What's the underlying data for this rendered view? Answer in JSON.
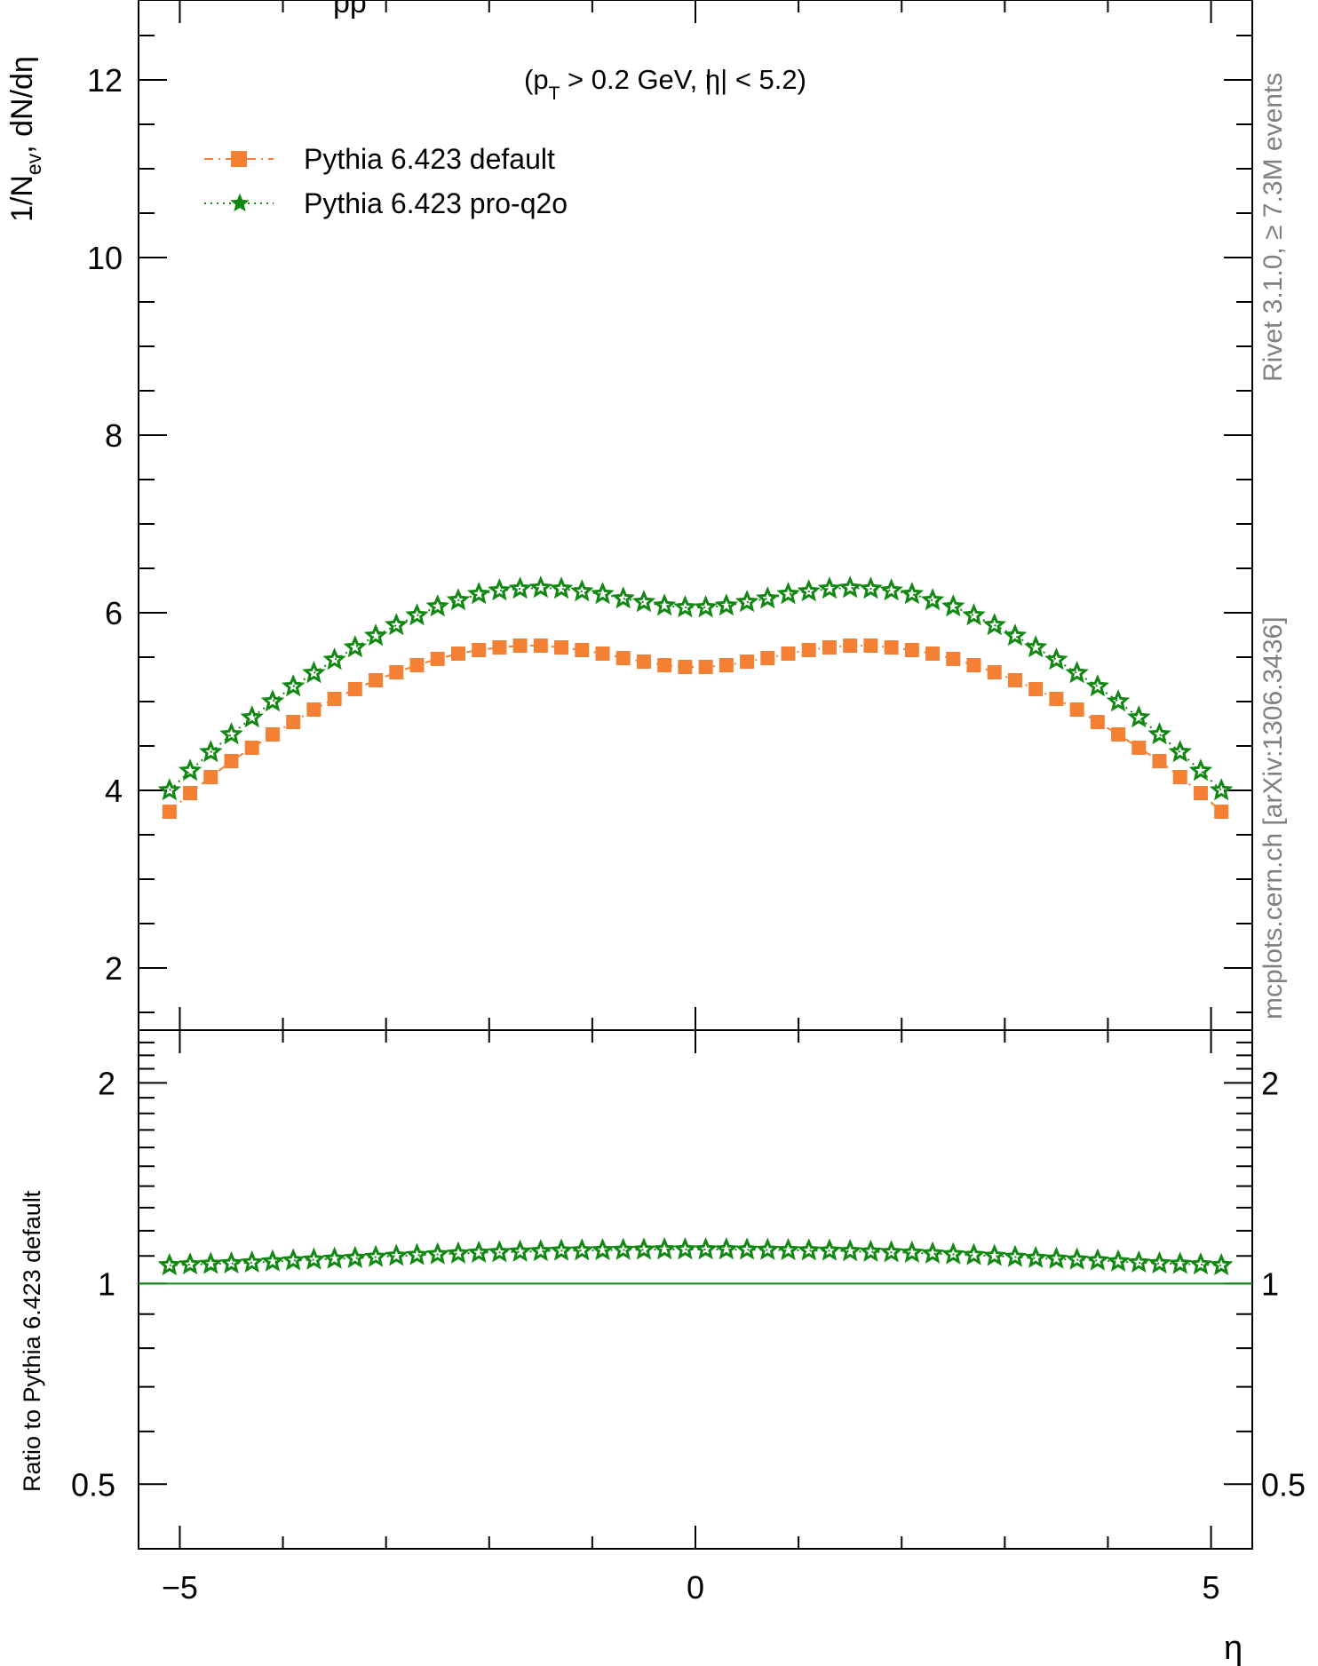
{
  "title_fragment": "pp",
  "annotation": "(p_T > 0.2 GeV, |η| < 5.2)",
  "annotation_parts": {
    "open": "(p",
    "sub": "T",
    "rest": " > 0.2 GeV, ",
    "eta": "η",
    "close": "| < 5.2)"
  },
  "watermark_right": "Rivet 3.1.0, ≥ 7.3M events",
  "watermark_source": "mcplots.cern.ch [arXiv:1306.3436]",
  "colors": {
    "default": "#f48033",
    "q2o": "#118811",
    "axis": "#000000",
    "watermark": "#808080"
  },
  "legend": [
    {
      "label": "Pythia 6.423 default",
      "marker": "square",
      "color": "#f48033"
    },
    {
      "label": "Pythia 6.423 pro-q2o",
      "marker": "star",
      "color": "#118811"
    }
  ],
  "chart_data": [
    {
      "type": "scatter",
      "panel": "main",
      "ylabel": "1/N_ev, dN/dη",
      "ylabel_parts": {
        "pre": "1/N",
        "sub": "ev",
        "post": ", dN/dη"
      },
      "xlim": [
        -5.4,
        5.4
      ],
      "ylim": [
        1.3,
        12.9
      ],
      "yticks": [
        2,
        4,
        6,
        8,
        10,
        12
      ],
      "grid": false,
      "legend_position": "top-left",
      "x": [
        -5.1,
        -4.9,
        -4.7,
        -4.5,
        -4.3,
        -4.1,
        -3.9,
        -3.7,
        -3.5,
        -3.3,
        -3.1,
        -2.9,
        -2.7,
        -2.5,
        -2.3,
        -2.1,
        -1.9,
        -1.7,
        -1.5,
        -1.3,
        -1.1,
        -0.9,
        -0.7,
        -0.5,
        -0.3,
        -0.1,
        0.1,
        0.3,
        0.5,
        0.7,
        0.9,
        1.1,
        1.3,
        1.5,
        1.7,
        1.9,
        2.1,
        2.3,
        2.5,
        2.7,
        2.9,
        3.1,
        3.3,
        3.5,
        3.7,
        3.9,
        4.1,
        4.3,
        4.5,
        4.7,
        4.9,
        5.1
      ],
      "series": [
        {
          "name": "Pythia 6.423 default",
          "values": [
            3.76,
            3.97,
            4.15,
            4.33,
            4.48,
            4.63,
            4.77,
            4.91,
            5.03,
            5.14,
            5.24,
            5.33,
            5.41,
            5.48,
            5.54,
            5.58,
            5.61,
            5.63,
            5.63,
            5.61,
            5.58,
            5.54,
            5.49,
            5.45,
            5.41,
            5.39,
            5.39,
            5.41,
            5.45,
            5.49,
            5.54,
            5.58,
            5.61,
            5.63,
            5.63,
            5.61,
            5.58,
            5.54,
            5.48,
            5.41,
            5.33,
            5.24,
            5.14,
            5.03,
            4.91,
            4.77,
            4.63,
            4.48,
            4.33,
            4.15,
            3.97,
            3.76
          ]
        },
        {
          "name": "Pythia 6.423 pro-q2o",
          "values": [
            4.0,
            4.22,
            4.43,
            4.63,
            4.82,
            5.0,
            5.17,
            5.32,
            5.47,
            5.61,
            5.74,
            5.86,
            5.97,
            6.07,
            6.14,
            6.21,
            6.25,
            6.27,
            6.28,
            6.27,
            6.24,
            6.21,
            6.16,
            6.12,
            6.08,
            6.06,
            6.06,
            6.08,
            6.12,
            6.16,
            6.21,
            6.24,
            6.27,
            6.28,
            6.27,
            6.25,
            6.21,
            6.14,
            6.07,
            5.97,
            5.86,
            5.74,
            5.61,
            5.47,
            5.32,
            5.17,
            5.0,
            4.82,
            4.63,
            4.43,
            4.22,
            4.0
          ]
        }
      ]
    },
    {
      "type": "scatter",
      "panel": "ratio",
      "ylabel": "Ratio to Pythia 6.423 default",
      "xlabel": "η",
      "xlim": [
        -5.4,
        5.4
      ],
      "ylim": [
        0.4,
        2.4
      ],
      "xticks": [
        -5,
        0,
        5
      ],
      "xtick_labels": [
        "−5",
        "0",
        "5"
      ],
      "yticks": [
        0.5,
        1,
        2
      ],
      "ytick_labels": [
        "0.5",
        "1",
        "2"
      ],
      "log_scale": true,
      "reference_line": 1,
      "x": [
        -5.1,
        -4.9,
        -4.7,
        -4.5,
        -4.3,
        -4.1,
        -3.9,
        -3.7,
        -3.5,
        -3.3,
        -3.1,
        -2.9,
        -2.7,
        -2.5,
        -2.3,
        -2.1,
        -1.9,
        -1.7,
        -1.5,
        -1.3,
        -1.1,
        -0.9,
        -0.7,
        -0.5,
        -0.3,
        -0.1,
        0.1,
        0.3,
        0.5,
        0.7,
        0.9,
        1.1,
        1.3,
        1.5,
        1.7,
        1.9,
        2.1,
        2.3,
        2.5,
        2.7,
        2.9,
        3.1,
        3.3,
        3.5,
        3.7,
        3.9,
        4.1,
        4.3,
        4.5,
        4.7,
        4.9,
        5.1
      ],
      "series": [
        {
          "name": "Pythia 6.423 pro-q2o",
          "values": [
            1.065,
            1.068,
            1.07,
            1.072,
            1.075,
            1.079,
            1.083,
            1.086,
            1.089,
            1.092,
            1.096,
            1.1,
            1.103,
            1.106,
            1.109,
            1.112,
            1.114,
            1.116,
            1.118,
            1.12,
            1.121,
            1.122,
            1.123,
            1.124,
            1.125,
            1.125,
            1.125,
            1.125,
            1.124,
            1.123,
            1.122,
            1.121,
            1.12,
            1.118,
            1.116,
            1.114,
            1.112,
            1.109,
            1.106,
            1.103,
            1.1,
            1.096,
            1.092,
            1.089,
            1.086,
            1.083,
            1.079,
            1.075,
            1.072,
            1.07,
            1.068,
            1.065
          ]
        }
      ]
    }
  ]
}
